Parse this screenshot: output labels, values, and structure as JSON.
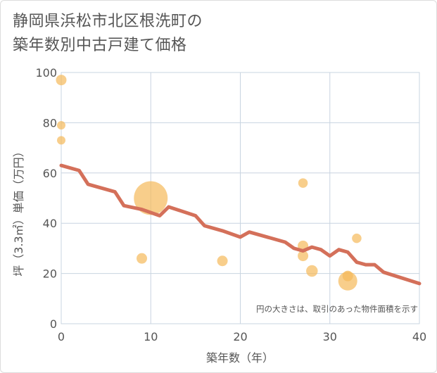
{
  "chart_data": {
    "type": "scatter",
    "title_line1": "静岡県浜松市北区根洗町の",
    "title_line2": "築年数別中古戸建て価格",
    "xlabel": "築年数（年）",
    "ylabel": "坪（3.3㎡）単価（万円）",
    "xlim": [
      0,
      40
    ],
    "ylim": [
      0,
      100
    ],
    "xticks": [
      0,
      10,
      20,
      30,
      40
    ],
    "yticks": [
      0,
      20,
      40,
      60,
      80,
      100
    ],
    "grid": true,
    "note": "円の大きさは、取引のあった物件面積を示す",
    "colors": {
      "points": "#f5b95a",
      "trend": "#d4705a"
    },
    "points": [
      {
        "x": 0,
        "y": 97,
        "size": 1
      },
      {
        "x": 0,
        "y": 79,
        "size": 0.8
      },
      {
        "x": 0,
        "y": 73,
        "size": 0.8
      },
      {
        "x": 9,
        "y": 26,
        "size": 1
      },
      {
        "x": 10,
        "y": 50,
        "size": 3.2
      },
      {
        "x": 18,
        "y": 25,
        "size": 1
      },
      {
        "x": 27,
        "y": 56,
        "size": 0.9
      },
      {
        "x": 27,
        "y": 31,
        "size": 1
      },
      {
        "x": 27,
        "y": 27,
        "size": 1
      },
      {
        "x": 28,
        "y": 21,
        "size": 1.1
      },
      {
        "x": 32,
        "y": 19,
        "size": 1
      },
      {
        "x": 32,
        "y": 17,
        "size": 1.8
      },
      {
        "x": 33,
        "y": 34,
        "size": 0.9
      }
    ],
    "trend": [
      {
        "x": 0,
        "y": 63
      },
      {
        "x": 2,
        "y": 61
      },
      {
        "x": 3,
        "y": 55.5
      },
      {
        "x": 6,
        "y": 52.5
      },
      {
        "x": 7,
        "y": 47
      },
      {
        "x": 9,
        "y": 45.5
      },
      {
        "x": 11,
        "y": 43
      },
      {
        "x": 12,
        "y": 46.5
      },
      {
        "x": 15,
        "y": 43
      },
      {
        "x": 16,
        "y": 39
      },
      {
        "x": 18,
        "y": 37
      },
      {
        "x": 20,
        "y": 34.5
      },
      {
        "x": 21,
        "y": 36.5
      },
      {
        "x": 25,
        "y": 32.5
      },
      {
        "x": 26,
        "y": 30
      },
      {
        "x": 27,
        "y": 29
      },
      {
        "x": 28,
        "y": 30.5
      },
      {
        "x": 29,
        "y": 29.5
      },
      {
        "x": 30,
        "y": 27
      },
      {
        "x": 31,
        "y": 29.5
      },
      {
        "x": 32,
        "y": 28.5
      },
      {
        "x": 33,
        "y": 24.5
      },
      {
        "x": 34,
        "y": 23.5
      },
      {
        "x": 35,
        "y": 23.5
      },
      {
        "x": 36,
        "y": 20.5
      },
      {
        "x": 40,
        "y": 16
      }
    ]
  }
}
